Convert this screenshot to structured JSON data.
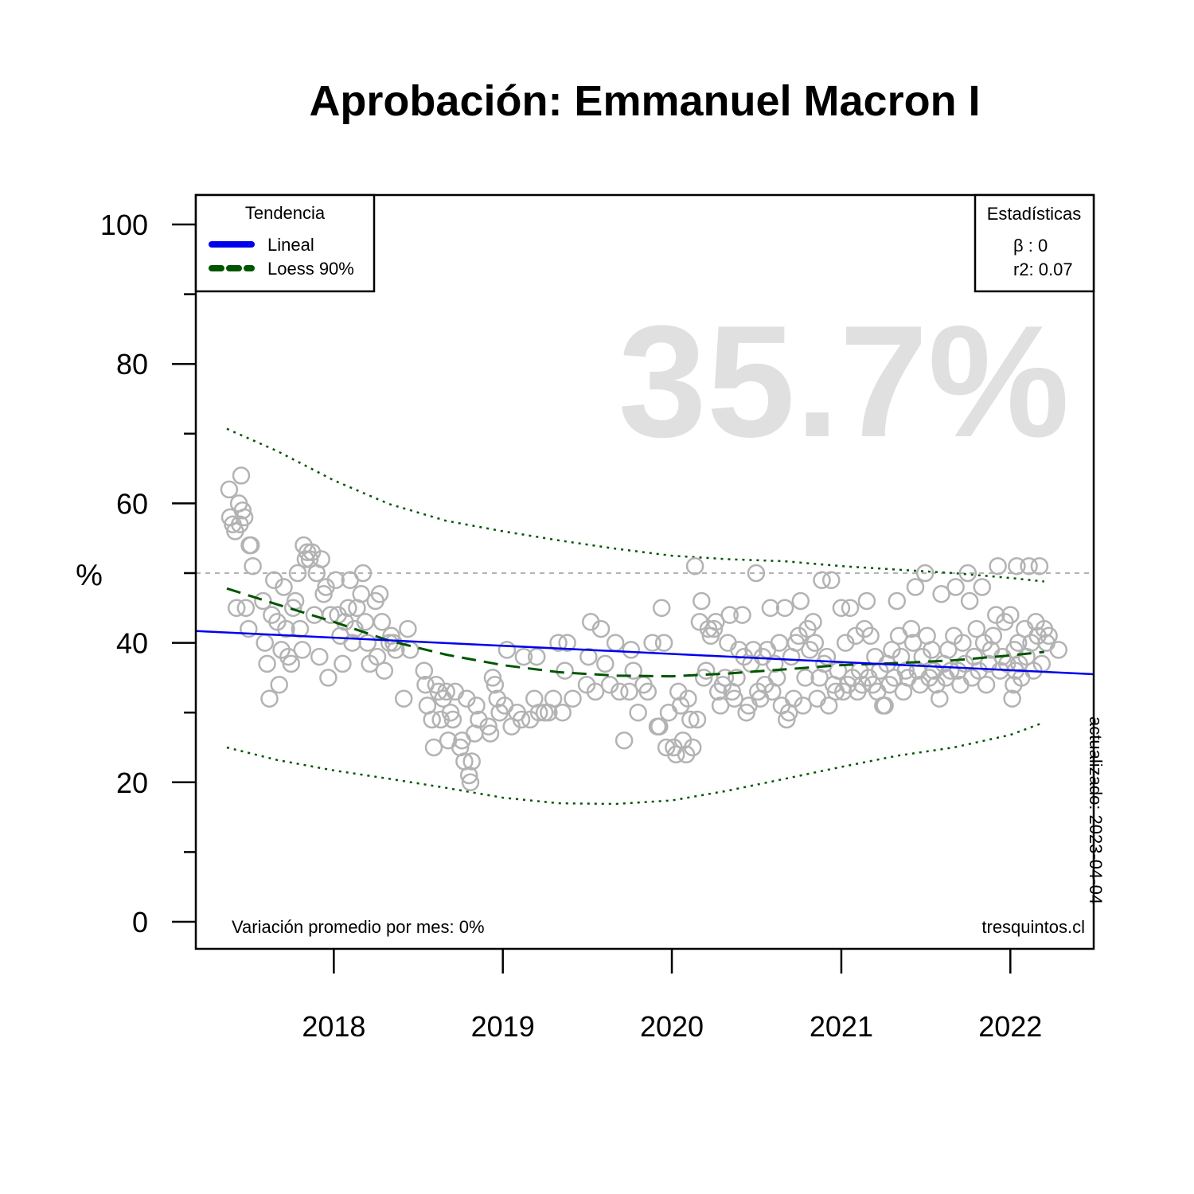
{
  "chart_data": {
    "type": "scatter",
    "title": "Aprobación: Emmanuel Macron I",
    "ylabel": "%",
    "xlabel": "",
    "ylim": [
      0,
      100
    ],
    "xlim": [
      "2017-03-09",
      "2022-06-30"
    ],
    "yticks": [
      0,
      20,
      40,
      60,
      80,
      100
    ],
    "yticks_minor": [
      10,
      30,
      50,
      70,
      90
    ],
    "xticks": [
      {
        "date": "2018-01-01",
        "label": "2018"
      },
      {
        "date": "2019-01-01",
        "label": "2019"
      },
      {
        "date": "2020-01-01",
        "label": "2020"
      },
      {
        "date": "2021-01-01",
        "label": "2021"
      },
      {
        "date": "2022-01-01",
        "label": "2022"
      }
    ],
    "reference_line": 50,
    "big_value": "35.7%",
    "footer_left": "Variación promedio por mes: 0%",
    "footer_right": "tresquintos.cl",
    "updated": "actualizado: 2023-04-04",
    "legend": {
      "title": "Tendencia",
      "position": "top-left",
      "items": [
        {
          "label": "Lineal",
          "color": "#0000ee",
          "style": "solid"
        },
        {
          "label": "Loess 90%",
          "color": "#005500",
          "style": "dashed"
        }
      ]
    },
    "stats": {
      "title": "Estadísticas",
      "position": "top-right",
      "beta": "β : 0",
      "r2": "r2: 0.07"
    },
    "colors": {
      "points": "#b3b3b3",
      "linear": "#0000ee",
      "loess": "#005500",
      "reference": "#b3b3b3",
      "big_value": "#e0e0e0"
    },
    "linear_trend": {
      "x": [
        "2017-03-09",
        "2022-06-30"
      ],
      "y": [
        41.7,
        35.5
      ]
    },
    "loess": {
      "x": [
        "2017-05-15",
        "2017-09-01",
        "2018-01-01",
        "2018-05-01",
        "2018-09-01",
        "2019-01-01",
        "2019-05-01",
        "2019-09-01",
        "2020-01-01",
        "2020-05-01",
        "2020-09-01",
        "2021-01-01",
        "2021-05-01",
        "2021-09-01",
        "2022-01-01",
        "2022-03-15"
      ],
      "y": [
        47.8,
        45.5,
        43,
        40.3,
        38.3,
        36.8,
        35.8,
        35.3,
        35.2,
        35.6,
        36.2,
        36.8,
        37.1,
        37.5,
        38.2,
        38.7
      ],
      "upper": [
        70.7,
        67.5,
        63.3,
        59.9,
        57.5,
        56.0,
        54.7,
        53.5,
        52.5,
        52.0,
        51.7,
        51.0,
        50.5,
        50.0,
        49.3,
        48.8
      ],
      "lower": [
        25.0,
        23.2,
        21.7,
        20.5,
        19.2,
        17.8,
        17.0,
        16.9,
        17.4,
        18.8,
        20.5,
        22.2,
        23.8,
        25.0,
        26.8,
        28.6
      ]
    },
    "points": [
      [
        "2017-05-20",
        62
      ],
      [
        "2017-05-22",
        58
      ],
      [
        "2017-05-28",
        57
      ],
      [
        "2017-06-02",
        56
      ],
      [
        "2017-06-05",
        45
      ],
      [
        "2017-06-10",
        60
      ],
      [
        "2017-06-12",
        57
      ],
      [
        "2017-06-15",
        64
      ],
      [
        "2017-06-18",
        59
      ],
      [
        "2017-06-22",
        58
      ],
      [
        "2017-06-25",
        45
      ],
      [
        "2017-07-01",
        42
      ],
      [
        "2017-07-03",
        54
      ],
      [
        "2017-07-06",
        54
      ],
      [
        "2017-07-10",
        51
      ],
      [
        "2017-08-01",
        46
      ],
      [
        "2017-08-05",
        40
      ],
      [
        "2017-08-10",
        37
      ],
      [
        "2017-08-15",
        32
      ],
      [
        "2017-08-20",
        44
      ],
      [
        "2017-08-25",
        49
      ],
      [
        "2017-09-01",
        43
      ],
      [
        "2017-09-05",
        34
      ],
      [
        "2017-09-10",
        39
      ],
      [
        "2017-09-15",
        48
      ],
      [
        "2017-09-20",
        42
      ],
      [
        "2017-09-25",
        38
      ],
      [
        "2017-10-01",
        37
      ],
      [
        "2017-10-05",
        45
      ],
      [
        "2017-10-10",
        46
      ],
      [
        "2017-10-15",
        50
      ],
      [
        "2017-10-20",
        42
      ],
      [
        "2017-10-25",
        39
      ],
      [
        "2017-10-28",
        54
      ],
      [
        "2017-11-01",
        52
      ],
      [
        "2017-11-05",
        53
      ],
      [
        "2017-11-10",
        52
      ],
      [
        "2017-11-15",
        53
      ],
      [
        "2017-11-20",
        44
      ],
      [
        "2017-11-25",
        50
      ],
      [
        "2017-12-01",
        38
      ],
      [
        "2017-12-05",
        52
      ],
      [
        "2017-12-10",
        47
      ],
      [
        "2017-12-15",
        48
      ],
      [
        "2017-12-20",
        35
      ],
      [
        "2017-12-25",
        44
      ],
      [
        "2018-01-05",
        49
      ],
      [
        "2018-01-10",
        44
      ],
      [
        "2018-01-15",
        41
      ],
      [
        "2018-01-20",
        37
      ],
      [
        "2018-01-25",
        43
      ],
      [
        "2018-02-01",
        45
      ],
      [
        "2018-02-05",
        49
      ],
      [
        "2018-02-10",
        40
      ],
      [
        "2018-02-15",
        42
      ],
      [
        "2018-02-20",
        45
      ],
      [
        "2018-03-01",
        47
      ],
      [
        "2018-03-05",
        50
      ],
      [
        "2018-03-10",
        43
      ],
      [
        "2018-03-15",
        40
      ],
      [
        "2018-03-20",
        37
      ],
      [
        "2018-04-01",
        46
      ],
      [
        "2018-04-05",
        38
      ],
      [
        "2018-04-10",
        47
      ],
      [
        "2018-04-15",
        43
      ],
      [
        "2018-04-20",
        36
      ],
      [
        "2018-05-01",
        40
      ],
      [
        "2018-05-05",
        41
      ],
      [
        "2018-05-10",
        40
      ],
      [
        "2018-05-15",
        39
      ],
      [
        "2018-06-01",
        32
      ],
      [
        "2018-06-10",
        42
      ],
      [
        "2018-06-15",
        39
      ],
      [
        "2018-07-15",
        36
      ],
      [
        "2018-07-18",
        34
      ],
      [
        "2018-07-22",
        31
      ],
      [
        "2018-08-01",
        29
      ],
      [
        "2018-08-05",
        25
      ],
      [
        "2018-08-10",
        34
      ],
      [
        "2018-08-15",
        33
      ],
      [
        "2018-08-20",
        29
      ],
      [
        "2018-08-25",
        32
      ],
      [
        "2018-09-01",
        33
      ],
      [
        "2018-09-05",
        26
      ],
      [
        "2018-09-10",
        30
      ],
      [
        "2018-09-15",
        29
      ],
      [
        "2018-09-20",
        33
      ],
      [
        "2018-10-01",
        25
      ],
      [
        "2018-10-05",
        26
      ],
      [
        "2018-10-10",
        23
      ],
      [
        "2018-10-15",
        32
      ],
      [
        "2018-10-20",
        21
      ],
      [
        "2018-10-23",
        20
      ],
      [
        "2018-10-26",
        23
      ],
      [
        "2018-11-01",
        27
      ],
      [
        "2018-11-05",
        31
      ],
      [
        "2018-11-10",
        29
      ],
      [
        "2018-12-01",
        28
      ],
      [
        "2018-12-05",
        27
      ],
      [
        "2018-12-10",
        35
      ],
      [
        "2018-12-15",
        34
      ],
      [
        "2018-12-20",
        32
      ],
      [
        "2018-12-25",
        30
      ],
      [
        "2019-01-05",
        31
      ],
      [
        "2019-01-10",
        39
      ],
      [
        "2019-01-20",
        28
      ],
      [
        "2019-02-01",
        30
      ],
      [
        "2019-02-10",
        29
      ],
      [
        "2019-02-15",
        38
      ],
      [
        "2019-03-01",
        29
      ],
      [
        "2019-03-10",
        32
      ],
      [
        "2019-03-15",
        38
      ],
      [
        "2019-03-20",
        30
      ],
      [
        "2019-04-01",
        30
      ],
      [
        "2019-04-10",
        30
      ],
      [
        "2019-04-20",
        32
      ],
      [
        "2019-05-01",
        40
      ],
      [
        "2019-05-10",
        30
      ],
      [
        "2019-05-15",
        36
      ],
      [
        "2019-05-20",
        40
      ],
      [
        "2019-06-01",
        32
      ],
      [
        "2019-07-01",
        34
      ],
      [
        "2019-07-05",
        38
      ],
      [
        "2019-07-10",
        43
      ],
      [
        "2019-07-20",
        33
      ],
      [
        "2019-08-01",
        42
      ],
      [
        "2019-08-10",
        37
      ],
      [
        "2019-08-20",
        34
      ],
      [
        "2019-09-01",
        40
      ],
      [
        "2019-09-10",
        33
      ],
      [
        "2019-09-20",
        26
      ],
      [
        "2019-10-01",
        33
      ],
      [
        "2019-10-05",
        39
      ],
      [
        "2019-10-10",
        36
      ],
      [
        "2019-10-20",
        30
      ],
      [
        "2019-11-01",
        34
      ],
      [
        "2019-11-10",
        33
      ],
      [
        "2019-11-20",
        40
      ],
      [
        "2019-12-01",
        28
      ],
      [
        "2019-12-05",
        28
      ],
      [
        "2019-12-10",
        45
      ],
      [
        "2019-12-15",
        40
      ],
      [
        "2019-12-20",
        25
      ],
      [
        "2019-12-25",
        30
      ],
      [
        "2020-01-05",
        25
      ],
      [
        "2020-01-10",
        24
      ],
      [
        "2020-01-15",
        33
      ],
      [
        "2020-01-20",
        31
      ],
      [
        "2020-01-25",
        26
      ],
      [
        "2020-02-01",
        24
      ],
      [
        "2020-02-05",
        32
      ],
      [
        "2020-02-10",
        29
      ],
      [
        "2020-02-15",
        25
      ],
      [
        "2020-02-20",
        51
      ],
      [
        "2020-02-25",
        29
      ],
      [
        "2020-03-01",
        43
      ],
      [
        "2020-03-05",
        46
      ],
      [
        "2020-03-10",
        35
      ],
      [
        "2020-03-15",
        36
      ],
      [
        "2020-03-20",
        42
      ],
      [
        "2020-03-25",
        41
      ],
      [
        "2020-04-01",
        42
      ],
      [
        "2020-04-05",
        43
      ],
      [
        "2020-04-10",
        33
      ],
      [
        "2020-04-15",
        31
      ],
      [
        "2020-04-20",
        34
      ],
      [
        "2020-04-25",
        35
      ],
      [
        "2020-05-01",
        40
      ],
      [
        "2020-05-05",
        44
      ],
      [
        "2020-05-10",
        33
      ],
      [
        "2020-05-15",
        32
      ],
      [
        "2020-05-20",
        35
      ],
      [
        "2020-05-25",
        39
      ],
      [
        "2020-06-01",
        44
      ],
      [
        "2020-06-05",
        38
      ],
      [
        "2020-06-10",
        30
      ],
      [
        "2020-06-15",
        31
      ],
      [
        "2020-06-20",
        37
      ],
      [
        "2020-06-25",
        39
      ],
      [
        "2020-07-01",
        50
      ],
      [
        "2020-07-05",
        33
      ],
      [
        "2020-07-10",
        32
      ],
      [
        "2020-07-15",
        38
      ],
      [
        "2020-07-20",
        34
      ],
      [
        "2020-07-25",
        39
      ],
      [
        "2020-08-01",
        45
      ],
      [
        "2020-08-05",
        33
      ],
      [
        "2020-08-10",
        37
      ],
      [
        "2020-08-15",
        35
      ],
      [
        "2020-08-20",
        40
      ],
      [
        "2020-08-25",
        31
      ],
      [
        "2020-09-01",
        45
      ],
      [
        "2020-09-05",
        29
      ],
      [
        "2020-09-10",
        30
      ],
      [
        "2020-09-15",
        38
      ],
      [
        "2020-09-20",
        32
      ],
      [
        "2020-09-25",
        40
      ],
      [
        "2020-10-01",
        41
      ],
      [
        "2020-10-05",
        46
      ],
      [
        "2020-10-10",
        31
      ],
      [
        "2020-10-15",
        35
      ],
      [
        "2020-10-20",
        42
      ],
      [
        "2020-10-25",
        39
      ],
      [
        "2020-11-01",
        43
      ],
      [
        "2020-11-05",
        40
      ],
      [
        "2020-11-10",
        32
      ],
      [
        "2020-11-15",
        35
      ],
      [
        "2020-11-20",
        49
      ],
      [
        "2020-11-25",
        37
      ],
      [
        "2020-12-01",
        38
      ],
      [
        "2020-12-05",
        31
      ],
      [
        "2020-12-10",
        49
      ],
      [
        "2020-12-15",
        34
      ],
      [
        "2020-12-20",
        33
      ],
      [
        "2020-12-25",
        36
      ],
      [
        "2021-01-01",
        45
      ],
      [
        "2021-01-05",
        33
      ],
      [
        "2021-01-10",
        40
      ],
      [
        "2021-01-15",
        34
      ],
      [
        "2021-01-20",
        45
      ],
      [
        "2021-01-25",
        35
      ],
      [
        "2021-02-01",
        41
      ],
      [
        "2021-02-05",
        33
      ],
      [
        "2021-02-10",
        36
      ],
      [
        "2021-02-15",
        34
      ],
      [
        "2021-02-20",
        42
      ],
      [
        "2021-02-25",
        46
      ],
      [
        "2021-03-01",
        35
      ],
      [
        "2021-03-05",
        41
      ],
      [
        "2021-03-10",
        34
      ],
      [
        "2021-03-15",
        38
      ],
      [
        "2021-03-20",
        33
      ],
      [
        "2021-03-25",
        36
      ],
      [
        "2021-04-01",
        31
      ],
      [
        "2021-04-05",
        31
      ],
      [
        "2021-04-10",
        37
      ],
      [
        "2021-04-15",
        34
      ],
      [
        "2021-04-20",
        39
      ],
      [
        "2021-04-25",
        35
      ],
      [
        "2021-05-01",
        46
      ],
      [
        "2021-05-05",
        41
      ],
      [
        "2021-05-10",
        38
      ],
      [
        "2021-05-15",
        33
      ],
      [
        "2021-05-20",
        36
      ],
      [
        "2021-05-25",
        35
      ],
      [
        "2021-06-01",
        42
      ],
      [
        "2021-06-05",
        40
      ],
      [
        "2021-06-10",
        48
      ],
      [
        "2021-06-15",
        36
      ],
      [
        "2021-06-20",
        34
      ],
      [
        "2021-06-25",
        38
      ],
      [
        "2021-07-01",
        50
      ],
      [
        "2021-07-05",
        41
      ],
      [
        "2021-07-10",
        35
      ],
      [
        "2021-07-15",
        39
      ],
      [
        "2021-07-20",
        36
      ],
      [
        "2021-07-25",
        34
      ],
      [
        "2021-08-01",
        32
      ],
      [
        "2021-08-05",
        47
      ],
      [
        "2021-08-10",
        37
      ],
      [
        "2021-08-15",
        35
      ],
      [
        "2021-08-20",
        39
      ],
      [
        "2021-08-25",
        36
      ],
      [
        "2021-09-01",
        41
      ],
      [
        "2021-09-05",
        48
      ],
      [
        "2021-09-10",
        36
      ],
      [
        "2021-09-15",
        34
      ],
      [
        "2021-09-20",
        40
      ],
      [
        "2021-09-25",
        37
      ],
      [
        "2021-10-01",
        50
      ],
      [
        "2021-10-05",
        46
      ],
      [
        "2021-10-10",
        35
      ],
      [
        "2021-10-15",
        38
      ],
      [
        "2021-10-20",
        42
      ],
      [
        "2021-10-25",
        36
      ],
      [
        "2021-11-01",
        48
      ],
      [
        "2021-11-05",
        40
      ],
      [
        "2021-11-10",
        34
      ],
      [
        "2021-11-15",
        37
      ],
      [
        "2021-11-20",
        39
      ],
      [
        "2021-11-25",
        41
      ],
      [
        "2021-12-01",
        44
      ],
      [
        "2021-12-05",
        51
      ],
      [
        "2021-12-10",
        36
      ],
      [
        "2021-12-15",
        38
      ],
      [
        "2021-12-20",
        43
      ],
      [
        "2021-12-25",
        37
      ],
      [
        "2022-01-01",
        44
      ],
      [
        "2022-01-05",
        32
      ],
      [
        "2022-01-08",
        34
      ],
      [
        "2022-01-10",
        39
      ],
      [
        "2022-01-12",
        36
      ],
      [
        "2022-01-15",
        51
      ],
      [
        "2022-01-18",
        40
      ],
      [
        "2022-01-20",
        37
      ],
      [
        "2022-01-25",
        35
      ],
      [
        "2022-02-01",
        42
      ],
      [
        "2022-02-05",
        38
      ],
      [
        "2022-02-10",
        51
      ],
      [
        "2022-02-15",
        40
      ],
      [
        "2022-02-20",
        36
      ],
      [
        "2022-02-25",
        43
      ],
      [
        "2022-03-01",
        41
      ],
      [
        "2022-03-05",
        51
      ],
      [
        "2022-03-10",
        37
      ],
      [
        "2022-03-15",
        42
      ],
      [
        "2022-03-20",
        40
      ],
      [
        "2022-03-25",
        41
      ],
      [
        "2022-04-15",
        39
      ]
    ]
  }
}
